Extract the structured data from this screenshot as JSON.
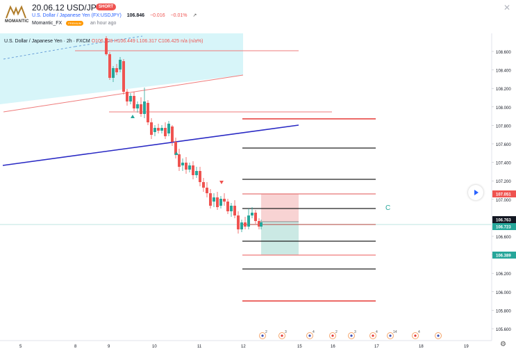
{
  "header": {
    "logo_text": "MOMANTIC",
    "title": "20.06.12 USD/JPY",
    "badge": "SHORT",
    "symbol": "U.S. Dollar / Japanese Yen (FX:USDJPY)",
    "price": "106.846",
    "change": "−0.016",
    "change_pct": "−0.01%",
    "author": "Momantic_FX",
    "author_badge": "PREMIUM",
    "time": "an hour ago",
    "close_icon": "close-icon",
    "share_icon": "share-icon"
  },
  "legend": {
    "symbol": "U.S. Dollar / Japanese Yen · 2h · FXCM",
    "ohlc": "O106.328 H106.449 L106.317 C106.425 n/a (n/a%)"
  },
  "price_axis": {
    "ticks": [
      "108.600",
      "108.400",
      "108.200",
      "108.000",
      "107.800",
      "107.600",
      "107.400",
      "107.200",
      "107.000",
      "106.800",
      "106.600",
      "106.400",
      "106.200",
      "106.000",
      "105.800",
      "105.600"
    ],
    "labels": [
      {
        "text": "107.051",
        "color": "#ef5350",
        "value": 107.051
      },
      {
        "text": "106.763",
        "color": "#131722",
        "value": 106.763
      },
      {
        "text": "106.723",
        "color": "#26a69a",
        "value": 106.723
      },
      {
        "text": "106.389",
        "color": "#26a69a",
        "value": 106.389
      }
    ]
  },
  "time_axis": {
    "ticks": [
      "5",
      "8",
      "9",
      "10",
      "11",
      "12",
      "15",
      "16",
      "17",
      "18",
      "19"
    ]
  },
  "annotations": {
    "wave_label": "C"
  },
  "event_flags": [
    "2",
    "3",
    "4",
    "2",
    "3",
    "4",
    "14",
    "4"
  ],
  "colors": {
    "up": "#26a69a",
    "down": "#ef5350",
    "channel_fill": "#cdf2f7",
    "short_loss": "#f8d3d3",
    "short_profit": "#cbe9e4",
    "trend_blue": "#2929c4"
  },
  "icons": {
    "play": "play-icon",
    "settings": "gear-icon"
  }
}
